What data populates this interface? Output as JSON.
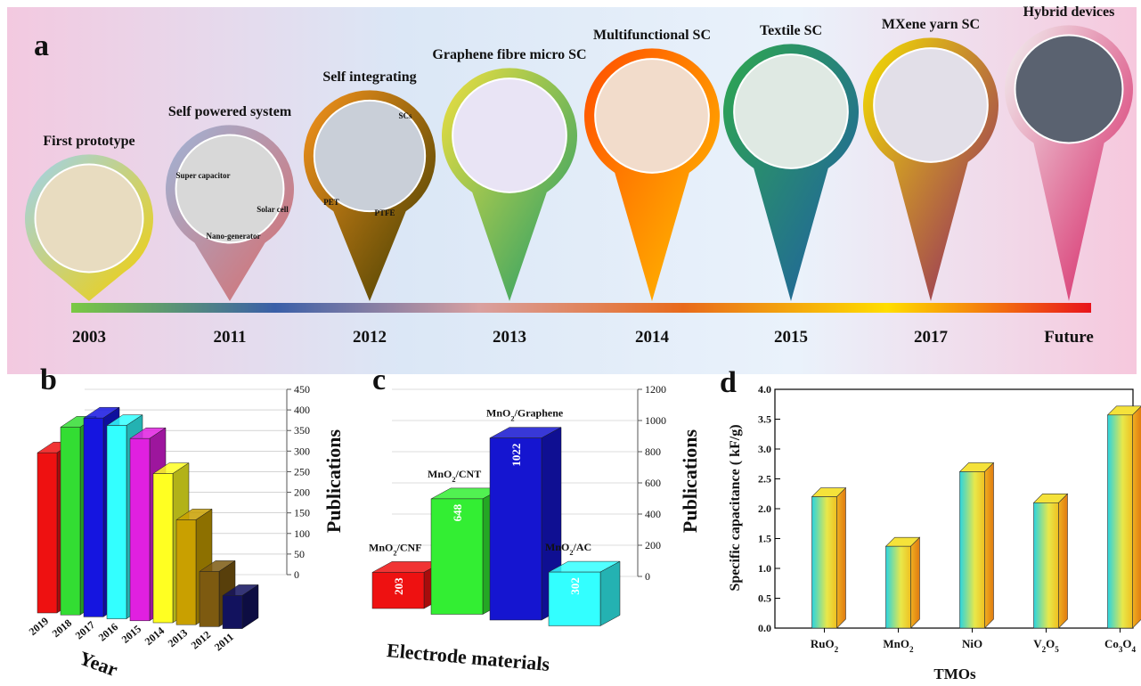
{
  "timeline": {
    "panel_label": "a",
    "nodes": [
      {
        "label": "First prototype",
        "year": "2003",
        "annotations": []
      },
      {
        "label": "Self powered system",
        "year": "2011",
        "annotations": [
          "Super capacitor",
          "Solar cell",
          "Nano-generator"
        ]
      },
      {
        "label": "Self integrating",
        "year": "2012",
        "annotations": [
          "SCs",
          "PET",
          "PTFE"
        ]
      },
      {
        "label": "Graphene fibre micro SC",
        "year": "2013",
        "annotations": []
      },
      {
        "label": "Multifunctional SC",
        "year": "2014",
        "annotations": []
      },
      {
        "label": "Textile SC",
        "year": "2015",
        "annotations": []
      },
      {
        "label": "MXene yarn SC",
        "year": "2017",
        "annotations": []
      },
      {
        "label": "Hybrid devices",
        "year": "Future",
        "annotations": []
      }
    ]
  },
  "chart_data": [
    {
      "type": "bar3d",
      "panel_label": "b",
      "xlabel": "Year",
      "ylabel": "Publications",
      "categories": [
        "2019",
        "2018",
        "2017",
        "2016",
        "2015",
        "2014",
        "2013",
        "2012",
        "2011"
      ],
      "values": [
        290,
        340,
        360,
        350,
        330,
        270,
        190,
        100,
        60
      ],
      "colors": [
        "#ee1111",
        "#33dd33",
        "#1515e0",
        "#33ffff",
        "#e020e0",
        "#ffff22",
        "#c9a000",
        "#7d5a10",
        "#12125e",
        "#640070"
      ],
      "ylim": [
        0,
        450
      ],
      "yticks": [
        0,
        50,
        100,
        150,
        200,
        250,
        300,
        350,
        400,
        450
      ],
      "grid": true
    },
    {
      "type": "bar3d",
      "panel_label": "c",
      "xlabel": "Electrode materials",
      "ylabel": "Publications",
      "categories": [
        "MnO2/CNF",
        "MnO2/CNT",
        "MnO2/Graphene",
        "MnO2/AC"
      ],
      "values": [
        203,
        648,
        1022,
        302
      ],
      "colors": [
        "#ee1111",
        "#33ee33",
        "#1515d0",
        "#33ffff"
      ],
      "ylim": [
        0,
        1200
      ],
      "yticks": [
        0,
        200,
        400,
        600,
        800,
        1000,
        1200
      ],
      "grid": true
    },
    {
      "type": "bar",
      "panel_label": "d",
      "xlabel": "TMOs",
      "ylabel": "Specific capacitance ( kF/g)",
      "categories": [
        "RuO2",
        "MnO2",
        "NiO",
        "V2O5",
        "Co3O4"
      ],
      "values": [
        2.2,
        1.37,
        2.62,
        2.1,
        3.57
      ],
      "ylim": [
        0,
        4
      ],
      "yticks": [
        {
          "value": 0,
          "label": "0.0"
        },
        {
          "value": 0.5,
          "label": "0.5"
        },
        {
          "value": 1,
          "label": "1.0"
        },
        {
          "value": 1.5,
          "label": "1.5"
        },
        {
          "value": 2,
          "label": "2.0"
        },
        {
          "value": 2.5,
          "label": "2.5"
        },
        {
          "value": 3,
          "label": "3.0"
        },
        {
          "value": 3.5,
          "label": "3.5"
        },
        {
          "value": 4,
          "label": "4.0"
        }
      ]
    }
  ]
}
